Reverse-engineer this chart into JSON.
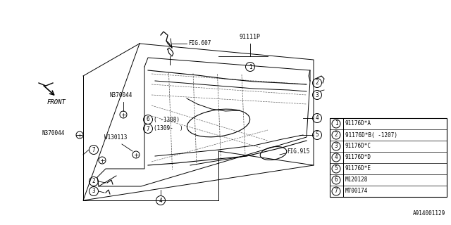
{
  "bg_color": "#ffffff",
  "line_color": "#000000",
  "title_bottom": "A914001129",
  "fig_ref1": "FIG.607",
  "fig_ref2": "FIG.915",
  "part_label_main": "91111P",
  "label_N370044": "N370044",
  "label_W130113": "W130113",
  "front_label": "FRONT",
  "legend_items": [
    {
      "num": "1",
      "code": "91176D*A"
    },
    {
      "num": "2",
      "code": "91176D*B( -1207)"
    },
    {
      "num": "3",
      "code": "91176D*C"
    },
    {
      "num": "4",
      "code": "91176D*D"
    },
    {
      "num": "5",
      "code": "91176D*E"
    },
    {
      "num": "6",
      "code": "M120128"
    },
    {
      "num": "7",
      "code": "M700174"
    }
  ]
}
